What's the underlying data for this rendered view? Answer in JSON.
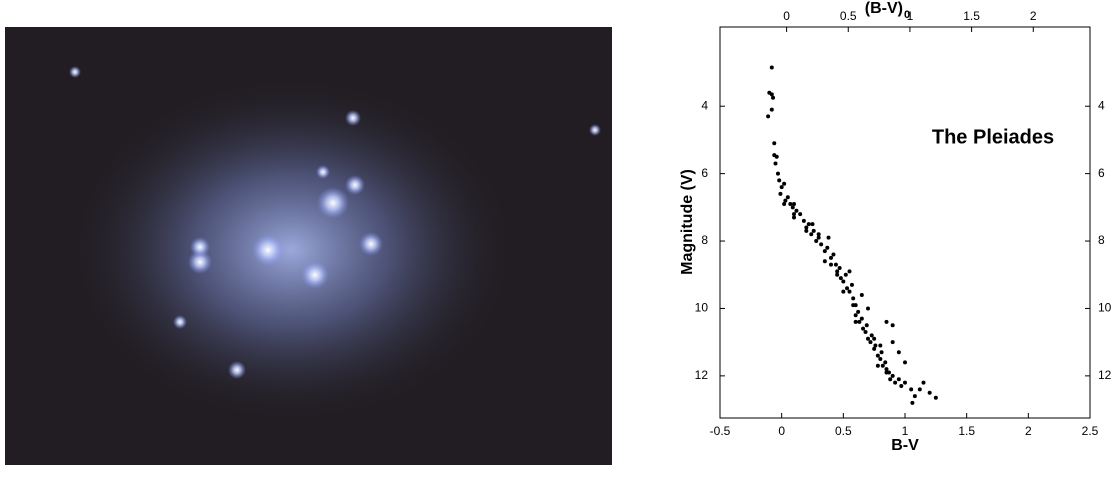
{
  "chart_data": {
    "type": "scatter",
    "annotation": "The Pleiades",
    "xlabel": "B-V",
    "x2label": "(B-V)",
    "x2label_sub": "0",
    "ylabel": "Magnitude (V)",
    "xlim": [
      -0.5,
      2.5
    ],
    "xticks": [
      -0.5,
      0,
      0.5,
      1,
      1.5,
      2,
      2.5
    ],
    "x2lim": [
      -0.54,
      2.46
    ],
    "x2ticks": [
      0,
      0.5,
      1,
      1.5,
      2
    ],
    "ylim": [
      13.25,
      1.65
    ],
    "yticks": [
      4,
      6,
      8,
      10,
      12
    ],
    "color": "#000000",
    "x": [
      -0.08,
      -0.1,
      -0.08,
      -0.07,
      -0.11,
      -0.08,
      -0.06,
      -0.06,
      -0.04,
      -0.05,
      -0.03,
      -0.02,
      0.0,
      0.02,
      -0.01,
      0.03,
      0.05,
      0.07,
      0.09,
      0.1,
      0.12,
      0.1,
      0.15,
      0.18,
      0.2,
      0.22,
      0.24,
      0.26,
      0.28,
      0.3,
      0.32,
      0.35,
      0.37,
      0.4,
      0.42,
      0.44,
      0.45,
      0.47,
      0.48,
      0.5,
      0.52,
      0.53,
      0.55,
      0.57,
      0.58,
      0.6,
      0.6,
      0.62,
      0.63,
      0.65,
      0.66,
      0.68,
      0.69,
      0.7,
      0.72,
      0.73,
      0.75,
      0.76,
      0.78,
      0.8,
      0.81,
      0.82,
      0.84,
      0.85,
      0.87,
      0.88,
      0.9,
      0.92,
      0.95,
      0.97,
      1.0,
      1.05,
      1.08,
      1.06,
      1.12,
      1.15,
      1.2,
      1.25,
      0.3,
      0.38,
      0.55,
      0.65,
      0.7,
      0.85,
      0.9,
      0.9,
      0.95,
      1.0,
      0.02,
      0.1,
      0.2,
      0.25,
      0.45,
      0.58,
      0.75,
      0.8,
      0.85,
      0.78,
      0.6,
      0.5,
      0.4,
      0.35
    ],
    "y": [
      2.85,
      3.6,
      3.65,
      3.75,
      4.3,
      4.1,
      5.1,
      5.45,
      5.5,
      5.7,
      6.0,
      6.2,
      6.4,
      6.3,
      6.6,
      6.8,
      6.7,
      6.9,
      7.0,
      6.9,
      7.1,
      7.3,
      7.2,
      7.4,
      7.6,
      7.5,
      7.8,
      7.7,
      8.0,
      7.9,
      8.1,
      8.3,
      8.2,
      8.5,
      8.4,
      8.7,
      8.9,
      8.8,
      9.1,
      9.2,
      9.0,
      9.4,
      9.5,
      9.3,
      9.7,
      9.9,
      10.2,
      10.1,
      10.4,
      10.3,
      10.6,
      10.7,
      10.5,
      10.9,
      11.0,
      10.8,
      11.2,
      11.1,
      11.4,
      11.5,
      11.3,
      11.7,
      11.6,
      11.8,
      11.9,
      12.1,
      12.0,
      12.2,
      12.1,
      12.3,
      12.2,
      12.4,
      12.6,
      12.8,
      12.4,
      12.2,
      12.5,
      12.65,
      7.8,
      7.9,
      8.9,
      9.6,
      10.0,
      10.4,
      10.5,
      11.0,
      11.3,
      11.6,
      6.9,
      7.2,
      7.7,
      7.5,
      9.0,
      9.9,
      10.9,
      11.1,
      11.9,
      11.7,
      10.4,
      9.5,
      8.7,
      8.6
    ]
  }
}
